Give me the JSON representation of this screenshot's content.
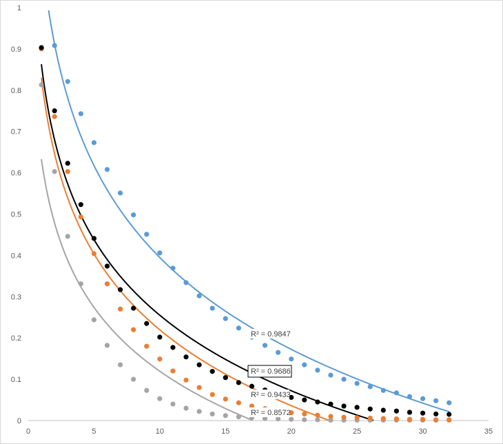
{
  "chart_data": {
    "type": "scatter",
    "title": "",
    "xlabel": "",
    "ylabel": "",
    "xlim": [
      0,
      35
    ],
    "ylim": [
      0,
      1
    ],
    "x_ticks": [
      "0",
      "5",
      "10",
      "15",
      "20",
      "25",
      "30",
      "35"
    ],
    "y_ticks": [
      "0",
      "0.1",
      "0.2",
      "0.3",
      "0.4",
      "0.5",
      "0.6",
      "0.7",
      "0.8",
      "0.9",
      "1"
    ],
    "grid": false,
    "legend": "none",
    "series": [
      {
        "name": "blue",
        "color": "#5b9bd5",
        "x": [
          2,
          3,
          4,
          5,
          6,
          7,
          8,
          9,
          10,
          11,
          12,
          13,
          14,
          15,
          16,
          17,
          18,
          19,
          20,
          21,
          22,
          23,
          24,
          25,
          26,
          27,
          28,
          29,
          30,
          31,
          32
        ],
        "y": [
          0.908,
          0.821,
          0.743,
          0.673,
          0.608,
          0.551,
          0.498,
          0.451,
          0.406,
          0.369,
          0.334,
          0.302,
          0.272,
          0.247,
          0.224,
          0.202,
          0.182,
          0.165,
          0.149,
          0.135,
          0.122,
          0.11,
          0.1,
          0.09,
          0.082,
          0.073,
          0.067,
          0.058,
          0.053,
          0.048,
          0.043
        ],
        "trendline": {
          "type": "logarithmic",
          "a": -0.321,
          "b": 1.134,
          "r2_label": "R² = 0.9847",
          "boxed": false
        }
      },
      {
        "name": "black",
        "color": "#000000",
        "x": [
          1,
          2,
          3,
          4,
          5,
          6,
          7,
          8,
          9,
          10,
          11,
          12,
          13,
          14,
          15,
          16,
          17,
          18,
          19,
          20,
          21,
          22,
          23,
          24,
          25,
          26,
          27,
          28,
          29,
          30,
          31,
          32
        ],
        "y": [
          0.903,
          0.75,
          0.623,
          0.523,
          0.441,
          0.374,
          0.317,
          0.272,
          0.235,
          0.202,
          0.177,
          0.154,
          0.135,
          0.119,
          0.104,
          0.092,
          0.083,
          0.074,
          0.064,
          0.056,
          0.05,
          0.045,
          0.04,
          0.035,
          0.032,
          0.028,
          0.025,
          0.023,
          0.02,
          0.018,
          0.016,
          0.015
        ],
        "trendline": {
          "type": "logarithmic",
          "a": -0.264,
          "b": 0.863,
          "r2_label": "R² = 0.9686",
          "boxed": true
        }
      },
      {
        "name": "orange",
        "color": "#ed7d31",
        "x": [
          1,
          2,
          3,
          4,
          5,
          6,
          7,
          8,
          9,
          10,
          11,
          12,
          13,
          14,
          15,
          16,
          17,
          18,
          19,
          20,
          21,
          22,
          23,
          24,
          25,
          26,
          27,
          28,
          29,
          30,
          31,
          32
        ],
        "y": [
          0.9,
          0.736,
          0.603,
          0.493,
          0.404,
          0.331,
          0.27,
          0.22,
          0.18,
          0.149,
          0.12,
          0.098,
          0.08,
          0.063,
          0.052,
          0.043,
          0.035,
          0.029,
          0.024,
          0.019,
          0.016,
          0.013,
          0.01,
          0.008,
          0.007,
          0.006,
          0.005,
          0.004,
          0.003,
          0.003,
          0.002,
          0.002
        ],
        "trendline": {
          "type": "logarithmic",
          "a": -0.265,
          "b": 0.83,
          "r2_label": "R² = 0.9433",
          "boxed": false
        }
      },
      {
        "name": "gray",
        "color": "#a5a5a5",
        "x": [
          1,
          2,
          3,
          4,
          5,
          6,
          7,
          8,
          9,
          10,
          11,
          12,
          13,
          14,
          15,
          16,
          17,
          18,
          19,
          20,
          21,
          22,
          23,
          24,
          25,
          26,
          27,
          28,
          29,
          30,
          31,
          32
        ],
        "y": [
          0.813,
          0.603,
          0.446,
          0.331,
          0.244,
          0.182,
          0.135,
          0.1,
          0.073,
          0.053,
          0.04,
          0.03,
          0.022,
          0.016,
          0.012,
          0.009,
          0.007,
          0.005,
          0.004,
          0.003,
          0.002,
          0.002,
          0.001,
          0.001,
          0.001,
          0.001,
          0.001,
          0.001,
          0.001,
          0.001,
          0.001,
          0.001
        ],
        "trendline": {
          "type": "logarithmic",
          "a": -0.223,
          "b": 0.633,
          "r2_label": "R² = 0.8572",
          "boxed": false
        }
      }
    ]
  }
}
